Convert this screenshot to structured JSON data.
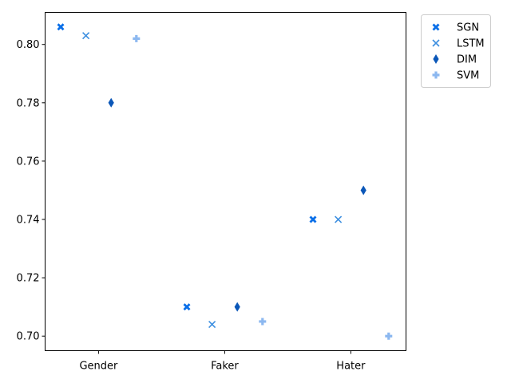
{
  "chart_data": {
    "type": "scatter",
    "categories": [
      "Gender",
      "Faker",
      "Hater"
    ],
    "ylim": [
      0.695,
      0.811
    ],
    "yticks": [
      "0.70",
      "0.72",
      "0.74",
      "0.76",
      "0.78",
      "0.80"
    ],
    "grid": false,
    "legend_position": "outside-top-right",
    "series": [
      {
        "name": "SGN",
        "marker": "X-filled",
        "color": "#0a6fe8",
        "values": [
          0.806,
          0.71,
          0.74
        ]
      },
      {
        "name": "LSTM",
        "marker": "x",
        "color": "#3d8fe0",
        "values": [
          0.803,
          0.704,
          0.74
        ]
      },
      {
        "name": "DIM",
        "marker": "diamond",
        "color": "#0b57b8",
        "values": [
          0.78,
          0.71,
          0.75
        ]
      },
      {
        "name": "SVM",
        "marker": "plus",
        "color": "#8cb8f0",
        "values": [
          0.802,
          0.705,
          0.7
        ]
      }
    ]
  }
}
